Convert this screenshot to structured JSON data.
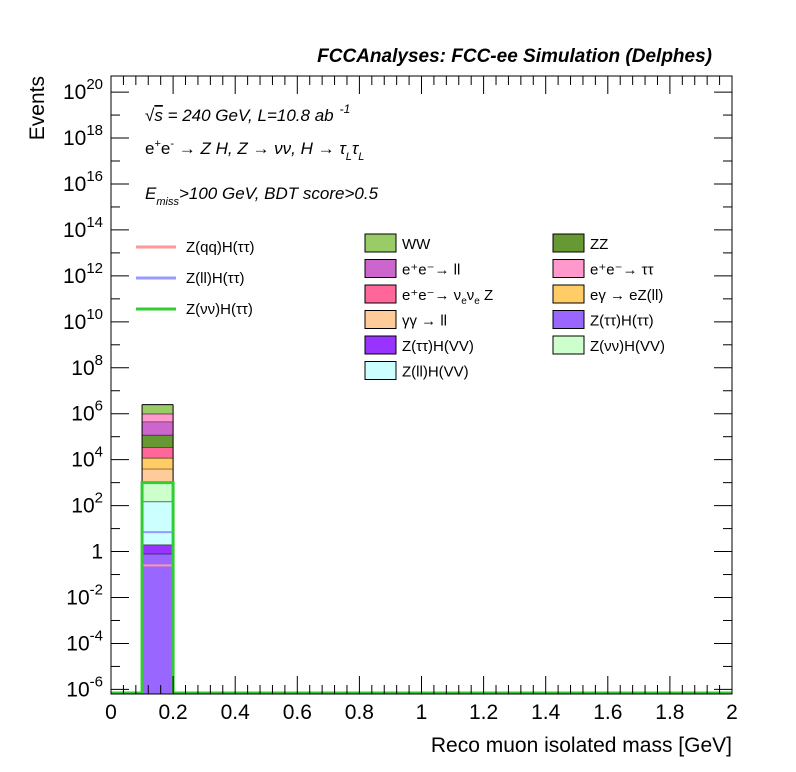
{
  "chart_data": {
    "type": "bar",
    "title": "FCCAnalyses: FCC-ee Simulation (Delphes)",
    "xlabel": "Reco muon isolated mass [GeV]",
    "ylabel": "Events",
    "xlim": [
      0,
      2
    ],
    "ylim_log10": [
      -6.2,
      20.7
    ],
    "log_y": true,
    "grid": false,
    "x_ticks": [
      "0",
      "0.2",
      "0.4",
      "0.6",
      "0.8",
      "1",
      "1.2",
      "1.4",
      "1.6",
      "1.8",
      "2"
    ],
    "y_ticks": [
      {
        "mant": "10",
        "exp": "20"
      },
      {
        "mant": "10",
        "exp": "18"
      },
      {
        "mant": "10",
        "exp": "16"
      },
      {
        "mant": "10",
        "exp": "14"
      },
      {
        "mant": "10",
        "exp": "12"
      },
      {
        "mant": "10",
        "exp": "10"
      },
      {
        "mant": "10",
        "exp": "8"
      },
      {
        "mant": "10",
        "exp": "6"
      },
      {
        "mant": "10",
        "exp": "4"
      },
      {
        "mant": "10",
        "exp": "2"
      },
      {
        "mant": "1",
        "exp": ""
      },
      {
        "mant": "10",
        "exp": "-2"
      },
      {
        "mant": "10",
        "exp": "-4"
      },
      {
        "mant": "10",
        "exp": "-6"
      }
    ],
    "annotations": {
      "line1": {
        "sqrt": "√",
        "s": "s",
        "main": " = 240 GeV, L=10.8 ab",
        "sup": "-1"
      },
      "line2": "e⁺e⁻ → Z H, Z → νν, H → τ_L τ_L",
      "line3": {
        "E": "E",
        "sub": "miss",
        "rest": ">100 GeV, BDT score>0.5"
      }
    },
    "bin": [
      0.1,
      0.2
    ],
    "stack": [
      {
        "name": "Z(ττ)H(ττ)",
        "cum_top": 0.8,
        "color": "#9966ff"
      },
      {
        "name": "Z(ττ)H(VV)",
        "cum_top": 2.0,
        "color": "#9933ff"
      },
      {
        "name": "Z(ll)H(VV)",
        "cum_top": 150,
        "color": "#ccffff"
      },
      {
        "name": "Z(νν)H(VV)",
        "cum_top": 1000,
        "color": "#ccffcc"
      },
      {
        "name": "γγ → ll",
        "cum_top": 4000,
        "color": "#ffcc99"
      },
      {
        "name": "eγ → eZ(ll)",
        "cum_top": 12000,
        "color": "#ffcc66"
      },
      {
        "name": "e⁺e⁻→ ν_e ν_e Z",
        "cum_top": 35000,
        "color": "#ff6699"
      },
      {
        "name": "ZZ",
        "cum_top": 120000,
        "color": "#669933"
      },
      {
        "name": "e⁺e⁻→ ll",
        "cum_top": 450000,
        "color": "#cc66cc"
      },
      {
        "name": "e⁺e⁻→ ττ",
        "cum_top": 1000000,
        "color": "#ff99cc"
      },
      {
        "name": "WW",
        "cum_top": 2500000,
        "color": "#99cc66"
      }
    ],
    "signals": [
      {
        "name": "Z(qq)H(ττ)",
        "value": 0.25,
        "color": "#ff9999"
      },
      {
        "name": "Z(ll)H(ττ)",
        "value": 7,
        "color": "#9999ff"
      },
      {
        "name": "Z(νν)H(ττ)",
        "value": 1000,
        "color": "#33cc33"
      }
    ],
    "legend_placement": "upper-middle"
  },
  "legend_left": [
    {
      "label": "Z(qq)H(ττ)",
      "color": "#ff9999"
    },
    {
      "label": "Z(ll)H(ττ)",
      "color": "#9999ff"
    },
    {
      "label": "Z(νν)H(ττ)",
      "color": "#33cc33"
    }
  ],
  "legend_boxes": [
    {
      "label": "WW",
      "color": "#99cc66"
    },
    {
      "label": "ZZ",
      "color": "#669933"
    },
    {
      "label": "e⁺e⁻→ ll",
      "color": "#cc66cc"
    },
    {
      "label": "e⁺e⁻→ ττ",
      "color": "#ff99cc"
    },
    {
      "label": "e⁺e⁻→ ν_eν_e Z",
      "color": "#ff6699"
    },
    {
      "label": "eγ → eZ(ll)",
      "color": "#ffcc66"
    },
    {
      "label": "γγ → ll",
      "color": "#ffcc99"
    },
    {
      "label": "Z(ττ)H(ττ)",
      "color": "#9966ff"
    },
    {
      "label": "Z(ττ)H(VV)",
      "color": "#9933ff"
    },
    {
      "label": "Z(νν)H(VV)",
      "color": "#ccffcc"
    },
    {
      "label": "Z(ll)H(VV)",
      "color": "#ccffff"
    }
  ]
}
